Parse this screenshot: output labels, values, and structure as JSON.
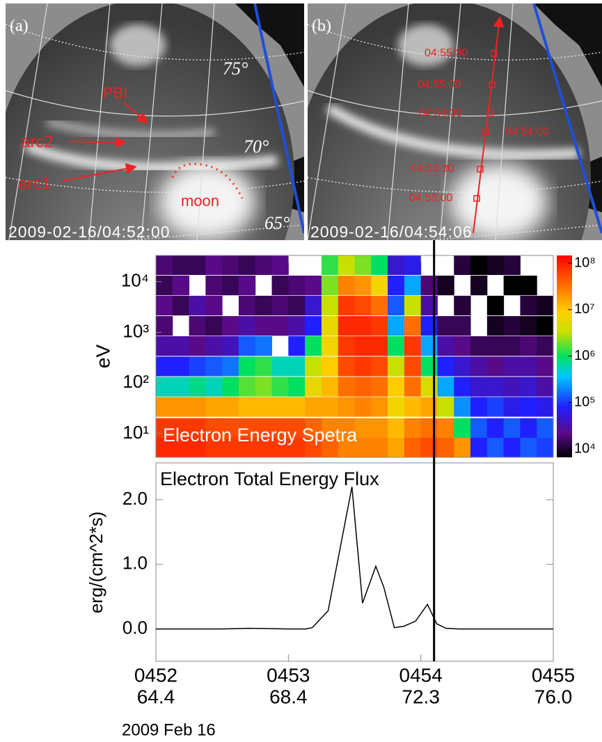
{
  "images": [
    {
      "label": "(a)",
      "timestamp": "2009-02-16/04:52:00",
      "latitudes": [
        "75°",
        "70°",
        "65°"
      ],
      "annotations": [
        "PBI",
        "arc2",
        "arc1",
        "moon"
      ]
    },
    {
      "label": "(b)",
      "timestamp": "2009-02-16/04:54:06",
      "track_times": [
        "04:55:30",
        "04:55:00",
        "04:54:30",
        "04:54:00",
        "04:53:30",
        "04:53:00"
      ]
    }
  ],
  "chart_data": [
    {
      "type": "heatmap",
      "title": "Electron Energy Spetra",
      "ylabel": "eV",
      "log_y": true,
      "xlim": [
        452,
        455
      ],
      "ylim": [
        3.4,
        33000
      ],
      "yticks": [
        {
          "value": 10,
          "label": "10¹"
        },
        {
          "value": 100,
          "label": "10²"
        },
        {
          "value": 1000,
          "label": "10³"
        },
        {
          "value": 10000,
          "label": "10⁴"
        }
      ],
      "clim": [
        10000,
        100000000
      ],
      "cticks": [
        {
          "value": 10000,
          "label": "10⁴"
        },
        {
          "value": 100000,
          "label": "10⁵"
        },
        {
          "value": 1000000,
          "label": "10⁶"
        },
        {
          "value": 10000000,
          "label": "10⁷"
        },
        {
          "value": 100000000,
          "label": "10⁸"
        }
      ],
      "vline_x": 454.1,
      "x": [
        452.0625,
        452.1875,
        452.3125,
        452.4375,
        452.5625,
        452.6875,
        452.8125,
        452.9375,
        453.0625,
        453.1875,
        453.3125,
        453.4375,
        453.5625,
        453.6875,
        453.8125,
        453.9375,
        454.0625,
        454.1875,
        454.3125,
        454.4375,
        454.5625,
        454.6875,
        454.8125,
        454.9375
      ],
      "y": [
        5.4,
        13,
        34,
        85,
        214,
        540,
        1350,
        3400,
        8500,
        21400
      ],
      "values": [
        [
          60000000.0,
          50000000.0,
          16000000.0,
          600000.0,
          100000.0,
          40000.0,
          25000.0,
          30000.0,
          20000.0,
          25000.0
        ],
        [
          60000000.0,
          50000000.0,
          16000000.0,
          600000.0,
          100000.0,
          40000.0,
          null,
          20000.0,
          30000.0,
          20000.0
        ],
        [
          60000000.0,
          50000000.0,
          16000000.0,
          800000.0,
          130000.0,
          30000.0,
          25000.0,
          40000.0,
          null,
          20000.0
        ],
        [
          50000000.0,
          40000000.0,
          13000000.0,
          600000.0,
          160000.0,
          40000.0,
          20000.0,
          30000.0,
          25000.0,
          30000.0
        ],
        [
          50000000.0,
          40000000.0,
          13000000.0,
          1000000.0,
          200000.0,
          50000.0,
          30000.0,
          null,
          20000.0,
          25000.0
        ],
        [
          50000000.0,
          40000000.0,
          10000000.0,
          1600000.0,
          1000000.0,
          160000.0,
          40000.0,
          25000.0,
          30000.0,
          20000.0
        ],
        [
          50000000.0,
          40000000.0,
          10000000.0,
          2000000.0,
          1300000.0,
          200000.0,
          30000.0,
          20000.0,
          null,
          25000.0
        ],
        [
          50000000.0,
          40000000.0,
          10000000.0,
          1300000.0,
          600000.0,
          null,
          30000.0,
          25000.0,
          20000.0,
          30000.0
        ],
        [
          50000000.0,
          40000000.0,
          10000000.0,
          1000000.0,
          600000.0,
          100000.0,
          40000.0,
          20000.0,
          25000.0,
          null
        ],
        [
          40000000.0,
          30000000.0,
          13000000.0,
          5000000.0,
          3000000.0,
          1000000.0,
          100000.0,
          60000.0,
          30000.0,
          null
        ],
        [
          30000000.0,
          20000000.0,
          13000000.0,
          10000000.0,
          8000000.0,
          6000000.0,
          5000000.0,
          3000000.0,
          2000000.0,
          1300000.0
        ],
        [
          20000000.0,
          20000000.0,
          16000000.0,
          25000000.0,
          40000000.0,
          50000000.0,
          60000000.0,
          50000000.0,
          20000000.0,
          3000000.0
        ],
        [
          20000000.0,
          16000000.0,
          20000000.0,
          30000000.0,
          50000000.0,
          60000000.0,
          60000000.0,
          40000000.0,
          16000000.0,
          2000000.0
        ],
        [
          20000000.0,
          16000000.0,
          16000000.0,
          25000000.0,
          40000000.0,
          60000000.0,
          50000000.0,
          25000000.0,
          6000000.0,
          1000000.0
        ],
        [
          13000000.0,
          10000000.0,
          6000000.0,
          8000000.0,
          3000000.0,
          1000000.0,
          300000.0,
          160000.0,
          100000.0,
          60000.0
        ],
        [
          30000000.0,
          20000000.0,
          10000000.0,
          25000000.0,
          40000000.0,
          50000000.0,
          25000000.0,
          3000000.0,
          300000.0,
          80000.0
        ],
        [
          40000000.0,
          25000000.0,
          13000000.0,
          4000000.0,
          1000000.0,
          300000.0,
          100000.0,
          40000.0,
          25000.0,
          null
        ],
        [
          30000000.0,
          20000000.0,
          3000000.0,
          300000.0,
          100000.0,
          40000.0,
          20000.0,
          null,
          13000.0,
          null
        ],
        [
          16000000.0,
          1000000.0,
          250000.0,
          100000.0,
          60000.0,
          30000.0,
          20000.0,
          16000.0,
          null,
          16000.0
        ],
        [
          100000.0,
          160000.0,
          100000.0,
          60000.0,
          40000.0,
          20000.0,
          null,
          null,
          13000.0,
          10000.0
        ],
        [
          160000.0,
          100000.0,
          130000.0,
          60000.0,
          30000.0,
          20000.0,
          13000.0,
          10000.0,
          null,
          13000.0
        ],
        [
          100000.0,
          160000.0,
          80000.0,
          50000.0,
          40000.0,
          20000.0,
          16000.0,
          null,
          10000.0,
          16000.0
        ],
        [
          160000.0,
          100000.0,
          100000.0,
          60000.0,
          40000.0,
          25000.0,
          13000.0,
          16000.0,
          10000.0,
          null
        ],
        [
          130000.0,
          160000.0,
          80000.0,
          40000.0,
          30000.0,
          20000.0,
          10000.0,
          13000.0,
          null,
          null
        ]
      ]
    },
    {
      "type": "line",
      "title": "Electron Total Energy Flux",
      "ylabel": "erg/(cm^2*s)",
      "color": "#000000",
      "xlim": [
        452,
        455
      ],
      "ylim": [
        -0.5,
        2.57
      ],
      "xticks": [
        {
          "value": 452,
          "label": "0452"
        },
        {
          "value": 453,
          "label": "0453"
        },
        {
          "value": 454,
          "label": "0454"
        },
        {
          "value": 455,
          "label": "0455"
        }
      ],
      "xtick_sublabels": [
        "64.4",
        "68.4",
        "72.3",
        "76.0"
      ],
      "x_caption": "2009 Feb 16",
      "yticks": [
        {
          "value": 0,
          "label": "0.0"
        },
        {
          "value": 1,
          "label": "1.0"
        },
        {
          "value": 2,
          "label": "2.0"
        }
      ],
      "vline_x": 454.1,
      "x": [
        452,
        452.5,
        452.7,
        453.0,
        453.13,
        453.18,
        453.3,
        453.48,
        453.56,
        453.66,
        453.72,
        453.8,
        453.87,
        453.96,
        454.05,
        454.12,
        454.19,
        454.29,
        455
      ],
      "values": [
        0,
        0,
        0.01,
        0,
        0,
        0.02,
        0.28,
        2.2,
        0.4,
        0.97,
        0.65,
        0.02,
        0.04,
        0.12,
        0.38,
        0.08,
        0.01,
        0,
        0
      ]
    }
  ]
}
